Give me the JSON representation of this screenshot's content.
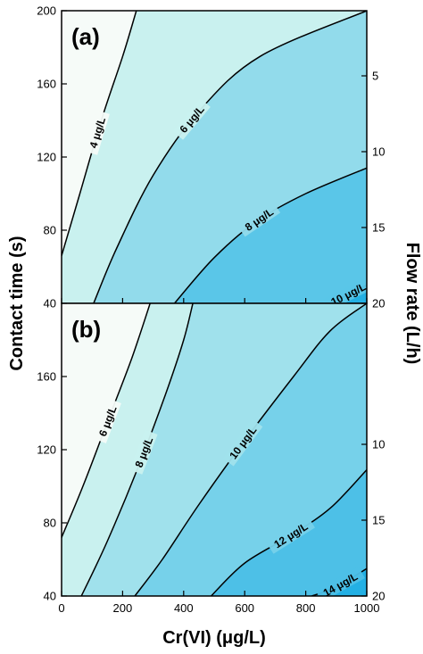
{
  "chart_data": {
    "type": "contour",
    "x_axis": {
      "label": "Cr(VI) (μg/L)",
      "range": [
        0,
        1000
      ],
      "ticks": [
        "0",
        "200",
        "400",
        "600",
        "800",
        "1000"
      ]
    },
    "y_axis_left": {
      "label": "Contact time (s)",
      "range": [
        40,
        200
      ]
    },
    "y_axis_right": {
      "label": "Flow rate (L/h)"
    },
    "colors": {
      "region_light": "#f6fbf8",
      "region_mid": "#c9f1ef",
      "region_deep": "#23b0e4",
      "line": "#000000"
    },
    "panels": [
      {
        "label": "(a)",
        "left_ticks": [
          "40",
          "80",
          "120",
          "160",
          "200"
        ],
        "right_ticks": [
          "20",
          "15",
          "10",
          "5"
        ],
        "contours": [
          {
            "level": 4,
            "label": "4 μg/L",
            "points": [
              [
                0,
                66
              ],
              [
                60,
                100
              ],
              [
                130,
                140
              ],
              [
                200,
                175
              ],
              [
                245,
                200
              ]
            ]
          },
          {
            "level": 6,
            "label": "6 μg/L",
            "points": [
              [
                105,
                40
              ],
              [
                180,
                70
              ],
              [
                300,
                110
              ],
              [
                450,
                145
              ],
              [
                650,
                175
              ],
              [
                1000,
                200
              ]
            ]
          },
          {
            "level": 8,
            "label": "8 μg/L",
            "points": [
              [
                370,
                40
              ],
              [
                500,
                65
              ],
              [
                640,
                85
              ],
              [
                800,
                100
              ],
              [
                1000,
                114
              ]
            ]
          },
          {
            "level": 10,
            "label": "10 μg/L",
            "points": [
              [
                880,
                40
              ],
              [
                940,
                45
              ],
              [
                1000,
                50
              ]
            ]
          }
        ]
      },
      {
        "label": "(b)",
        "left_ticks": [
          "40",
          "80",
          "120",
          "160"
        ],
        "right_ticks": [
          "20",
          "15",
          "10"
        ],
        "contours": [
          {
            "level": 6,
            "label": "6 μg/L",
            "points": [
              [
                0,
                72
              ],
              [
                70,
                100
              ],
              [
                150,
                135
              ],
              [
                230,
                170
              ],
              [
                290,
                200
              ]
            ]
          },
          {
            "level": 8,
            "label": "8 μg/L",
            "points": [
              [
                65,
                40
              ],
              [
                150,
                70
              ],
              [
                250,
                110
              ],
              [
                340,
                150
              ],
              [
                400,
                180
              ],
              [
                430,
                200
              ]
            ]
          },
          {
            "level": 10,
            "label": "10 μg/L",
            "points": [
              [
                240,
                40
              ],
              [
                330,
                60
              ],
              [
                450,
                90
              ],
              [
                600,
                125
              ],
              [
                760,
                160
              ],
              [
                880,
                185
              ],
              [
                1000,
                200
              ]
            ]
          },
          {
            "level": 12,
            "label": "12 μg/L",
            "points": [
              [
                490,
                40
              ],
              [
                600,
                58
              ],
              [
                750,
                73
              ],
              [
                880,
                88
              ],
              [
                1000,
                109
              ]
            ]
          },
          {
            "level": 14,
            "label": "14 μg/L",
            "points": [
              [
                820,
                40
              ],
              [
                900,
                45
              ],
              [
                1000,
                55
              ]
            ]
          }
        ]
      }
    ]
  }
}
